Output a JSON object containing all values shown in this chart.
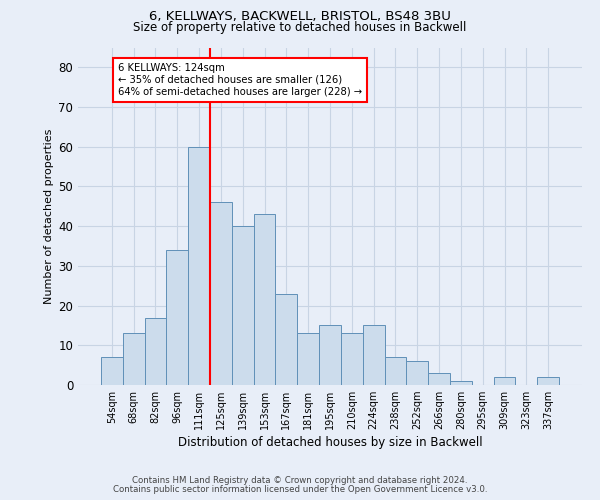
{
  "title1": "6, KELLWAYS, BACKWELL, BRISTOL, BS48 3BU",
  "title2": "Size of property relative to detached houses in Backwell",
  "xlabel": "Distribution of detached houses by size in Backwell",
  "ylabel": "Number of detached properties",
  "categories": [
    "54sqm",
    "68sqm",
    "82sqm",
    "96sqm",
    "111sqm",
    "125sqm",
    "139sqm",
    "153sqm",
    "167sqm",
    "181sqm",
    "195sqm",
    "210sqm",
    "224sqm",
    "238sqm",
    "252sqm",
    "266sqm",
    "280sqm",
    "295sqm",
    "309sqm",
    "323sqm",
    "337sqm"
  ],
  "values": [
    7,
    13,
    17,
    34,
    60,
    46,
    40,
    43,
    23,
    13,
    15,
    13,
    15,
    7,
    6,
    3,
    1,
    0,
    2,
    0,
    2
  ],
  "bar_color": "#ccdcec",
  "bar_edge_color": "#6090b8",
  "grid_color": "#c8d4e4",
  "background_color": "#e8eef8",
  "annotation_line1": "6 KELLWAYS: 124sqm",
  "annotation_line2": "← 35% of detached houses are smaller (126)",
  "annotation_line3": "64% of semi-detached houses are larger (228) →",
  "annotation_box_color": "white",
  "annotation_box_edge": "red",
  "vline_color": "red",
  "vline_x_index": 4.5,
  "ylim": [
    0,
    85
  ],
  "yticks": [
    0,
    10,
    20,
    30,
    40,
    50,
    60,
    70,
    80
  ],
  "footer1": "Contains HM Land Registry data © Crown copyright and database right 2024.",
  "footer2": "Contains public sector information licensed under the Open Government Licence v3.0."
}
